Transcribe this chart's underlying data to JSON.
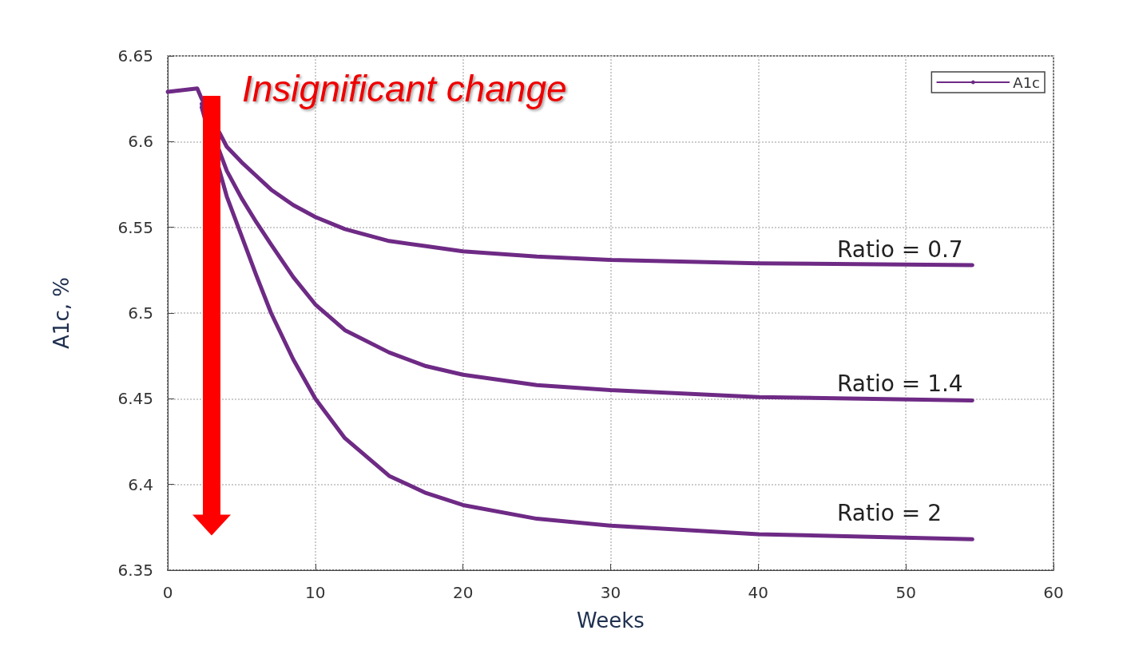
{
  "chart_data": {
    "type": "line",
    "xlabel": "Weeks",
    "ylabel": "A1c, %",
    "xlim": [
      0,
      60
    ],
    "xticks": [
      0,
      10,
      20,
      30,
      40,
      50,
      60
    ],
    "ylim": [
      6.35,
      6.65
    ],
    "yticks": [
      6.35,
      6.4,
      6.45,
      6.5,
      6.55,
      6.6,
      6.65
    ],
    "grid": true,
    "legend": "top right",
    "marker": "none",
    "line_style": "solid",
    "series": [
      {
        "name": "A1c",
        "color": "#6e2a85",
        "x": [
          0,
          2,
          2.3,
          4,
          5,
          6,
          7,
          8.5,
          10,
          12,
          15,
          17.5,
          20,
          25,
          30,
          40,
          54.5
        ],
        "values": [
          6.629,
          6.631,
          6.625,
          6.597,
          6.588,
          6.58,
          6.572,
          6.563,
          6.556,
          6.549,
          6.542,
          6.539,
          6.536,
          6.533,
          6.531,
          6.529,
          6.528
        ]
      },
      {
        "color": "#6e2a85",
        "x": [
          2.3,
          4,
          5,
          6,
          7,
          8.5,
          10,
          12,
          15,
          17.5,
          20,
          25,
          30,
          40,
          54.5
        ],
        "values": [
          6.622,
          6.583,
          6.567,
          6.553,
          6.54,
          6.521,
          6.505,
          6.49,
          6.477,
          6.469,
          6.464,
          6.458,
          6.455,
          6.451,
          6.449
        ]
      },
      {
        "color": "#6e2a85",
        "x": [
          2.3,
          4,
          5,
          6,
          7,
          8.5,
          10,
          12,
          15,
          17.5,
          20,
          25,
          30,
          40,
          54.5
        ],
        "values": [
          6.62,
          6.568,
          6.545,
          6.522,
          6.5,
          6.473,
          6.45,
          6.427,
          6.405,
          6.395,
          6.388,
          6.38,
          6.376,
          6.371,
          6.368
        ]
      }
    ],
    "annotations": [
      "Insignificant change",
      "Ratio = 0.7",
      "Ratio = 1.4",
      "Ratio = 2"
    ]
  }
}
